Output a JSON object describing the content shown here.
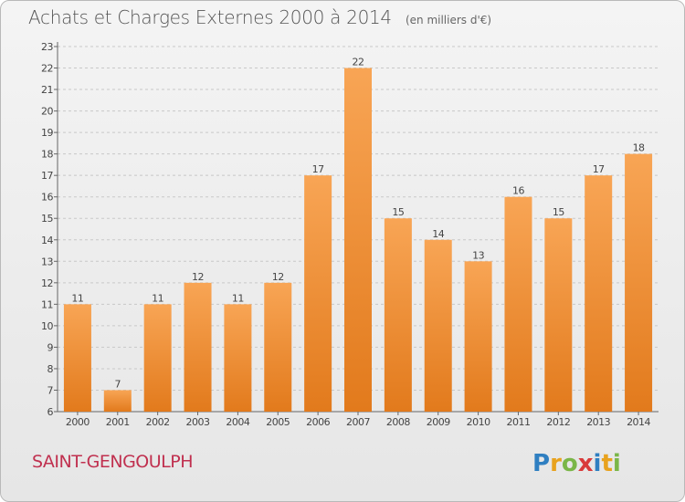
{
  "title": "Achats et Charges Externes 2000 à 2014",
  "subtitle": "(en milliers d'€)",
  "commune": "SAINT-GENGOULPH",
  "logo_text": "Proxiti",
  "colors": {
    "bar_top": "#f8a555",
    "bar_bottom": "#e27a1c",
    "grid": "#c8c8c8",
    "commune": "#c0304f"
  },
  "chart_data": {
    "type": "bar",
    "title": "Achats et Charges Externes 2000 à 2014",
    "subtitle": "(en milliers d'€)",
    "categories": [
      "2000",
      "2001",
      "2002",
      "2003",
      "2004",
      "2005",
      "2006",
      "2007",
      "2008",
      "2009",
      "2010",
      "2011",
      "2012",
      "2013",
      "2014"
    ],
    "values": [
      11,
      7,
      11,
      12,
      11,
      12,
      17,
      22,
      15,
      14,
      13,
      16,
      15,
      17,
      18
    ],
    "ylim": [
      6,
      23
    ],
    "yticks": [
      6,
      7,
      8,
      9,
      10,
      11,
      12,
      13,
      14,
      15,
      16,
      17,
      18,
      19,
      20,
      21,
      22,
      23
    ],
    "grid": "horizontal dashed",
    "legend": "none"
  }
}
